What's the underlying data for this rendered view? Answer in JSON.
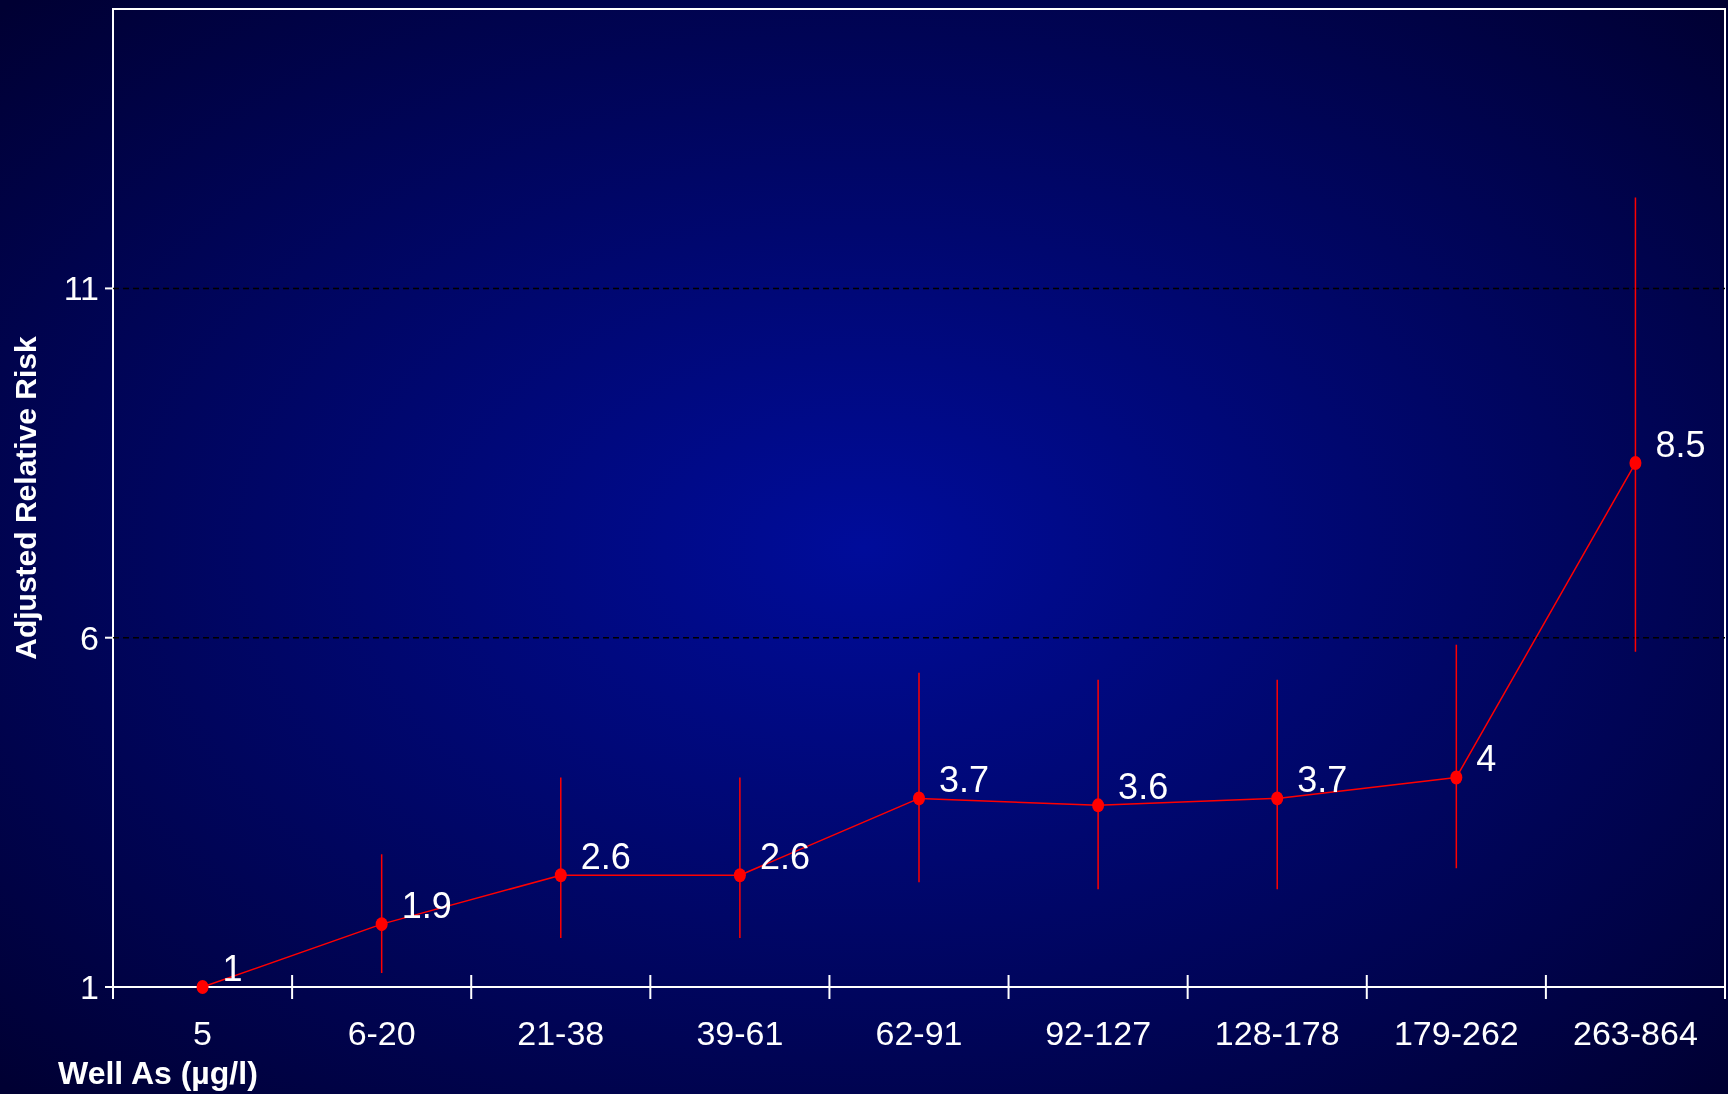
{
  "chart_data": {
    "type": "line",
    "xlabel": "Well As (µg/l)",
    "ylabel": "Adjusted Relative Risk",
    "categories": [
      "5",
      "6-20",
      "21-38",
      "39-61",
      "62-91",
      "92-127",
      "128-178",
      "179-262",
      "263-864"
    ],
    "series": [
      {
        "color": "#ff0000",
        "values": [
          1,
          1.9,
          2.6,
          2.6,
          3.7,
          3.6,
          3.7,
          4,
          8.5
        ],
        "errors": [
          null,
          [
            1.2,
            2.9
          ],
          [
            1.7,
            4.0
          ],
          [
            1.7,
            4.0
          ],
          [
            2.5,
            5.5
          ],
          [
            2.4,
            5.4
          ],
          [
            2.4,
            5.4
          ],
          [
            2.7,
            5.9
          ],
          [
            5.8,
            12.3
          ]
        ]
      }
    ],
    "ylim": [
      1,
      15
    ],
    "yticks": [
      1,
      6,
      11
    ],
    "grid": "y",
    "marker": "circle",
    "line_style": "solid",
    "data_labels": true
  }
}
